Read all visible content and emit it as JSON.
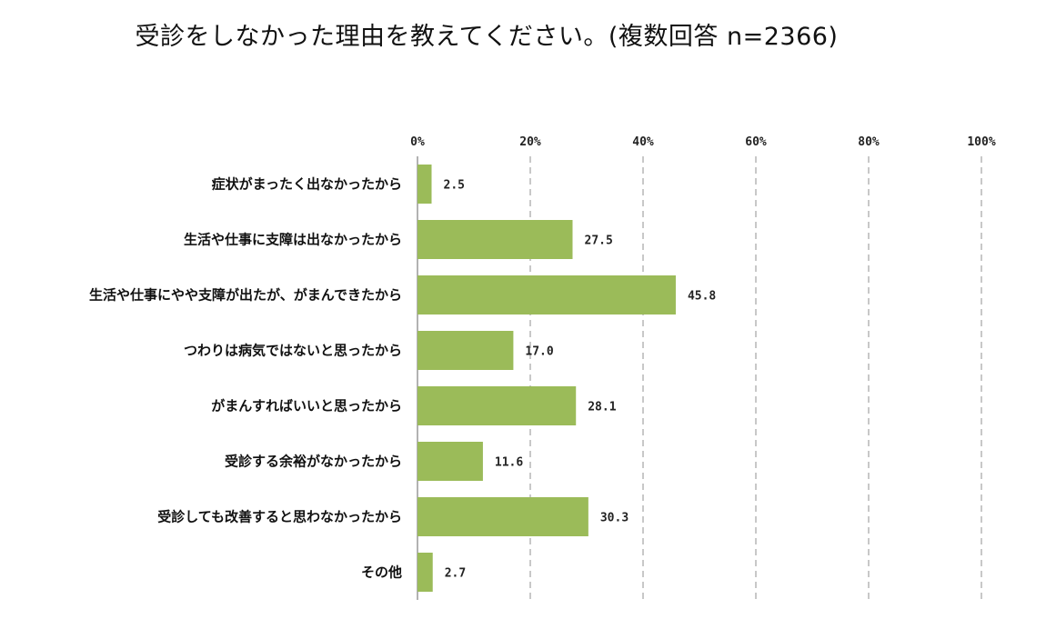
{
  "chart_data": {
    "type": "bar",
    "orientation": "horizontal",
    "title": "受診をしなかった理由を教えてください。(複数回答 n=2366)",
    "categories": [
      "症状がまったく出なかったから",
      "生活や仕事に支障は出なかったから",
      "生活や仕事にやや支障が出たが、がまんできたから",
      "つわりは病気ではないと思ったから",
      "がまんすればいいと思ったから",
      "受診する余裕がなかったから",
      "受診しても改善すると思わなかったから",
      "その他"
    ],
    "values": [
      2.5,
      27.5,
      45.8,
      17.0,
      28.1,
      11.6,
      30.3,
      2.7
    ],
    "value_labels": [
      "2.5",
      "27.5",
      "45.8",
      "17.0",
      "28.1",
      "11.6",
      "30.3",
      "2.7"
    ],
    "xticks": [
      "0%",
      "20%",
      "40%",
      "60%",
      "80%",
      "100%"
    ],
    "xlim": [
      0,
      100
    ],
    "grid": true,
    "bar_color": "#9bbb59"
  }
}
